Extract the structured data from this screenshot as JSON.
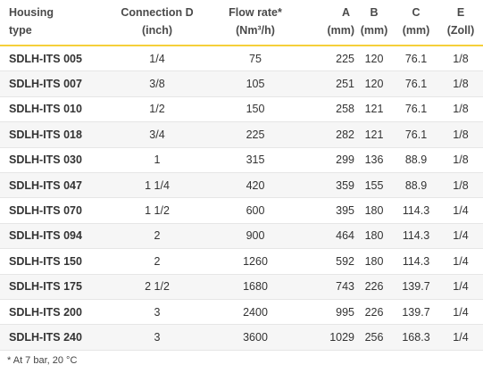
{
  "headers": {
    "type": [
      "Housing",
      "type"
    ],
    "connection": [
      "Connection D",
      "(inch)"
    ],
    "flow": [
      "Flow rate*",
      "(Nm³/h)"
    ],
    "a": [
      "A",
      "(mm)"
    ],
    "b": [
      "B",
      "(mm)"
    ],
    "c": [
      "C",
      "(mm)"
    ],
    "e": [
      "E",
      "(Zoll)"
    ]
  },
  "rows": [
    {
      "type": "SDLH-ITS 005",
      "conn": "1/4",
      "flow": "75",
      "a": "225",
      "b": "120",
      "c": "76.1",
      "e": "1/8"
    },
    {
      "type": "SDLH-ITS 007",
      "conn": "3/8",
      "flow": "105",
      "a": "251",
      "b": "120",
      "c": "76.1",
      "e": "1/8"
    },
    {
      "type": "SDLH-ITS 010",
      "conn": "1/2",
      "flow": "150",
      "a": "258",
      "b": "121",
      "c": "76.1",
      "e": "1/8"
    },
    {
      "type": "SDLH-ITS 018",
      "conn": "3/4",
      "flow": "225",
      "a": "282",
      "b": "121",
      "c": "76.1",
      "e": "1/8"
    },
    {
      "type": "SDLH-ITS 030",
      "conn": "1",
      "flow": "315",
      "a": "299",
      "b": "136",
      "c": "88.9",
      "e": "1/8"
    },
    {
      "type": "SDLH-ITS 047",
      "conn": "1 1/4",
      "flow": "420",
      "a": "359",
      "b": "155",
      "c": "88.9",
      "e": "1/8"
    },
    {
      "type": "SDLH-ITS 070",
      "conn": "1 1/2",
      "flow": "600",
      "a": "395",
      "b": "180",
      "c": "114.3",
      "e": "1/4"
    },
    {
      "type": "SDLH-ITS 094",
      "conn": "2",
      "flow": "900",
      "a": "464",
      "b": "180",
      "c": "114.3",
      "e": "1/4"
    },
    {
      "type": "SDLH-ITS 150",
      "conn": "2",
      "flow": "1260",
      "a": "592",
      "b": "180",
      "c": "114.3",
      "e": "1/4"
    },
    {
      "type": "SDLH-ITS 175",
      "conn": "2 1/2",
      "flow": "1680",
      "a": "743",
      "b": "226",
      "c": "139.7",
      "e": "1/4"
    },
    {
      "type": "SDLH-ITS 200",
      "conn": "3",
      "flow": "2400",
      "a": "995",
      "b": "226",
      "c": "139.7",
      "e": "1/4"
    },
    {
      "type": "SDLH-ITS 240",
      "conn": "3",
      "flow": "3600",
      "a": "1029",
      "b": "256",
      "c": "168.3",
      "e": "1/4"
    }
  ],
  "footnote": "* At 7 bar, 20 °C",
  "colors": {
    "header_rule": "#f5cf3a",
    "stripe": "#f6f6f6"
  }
}
